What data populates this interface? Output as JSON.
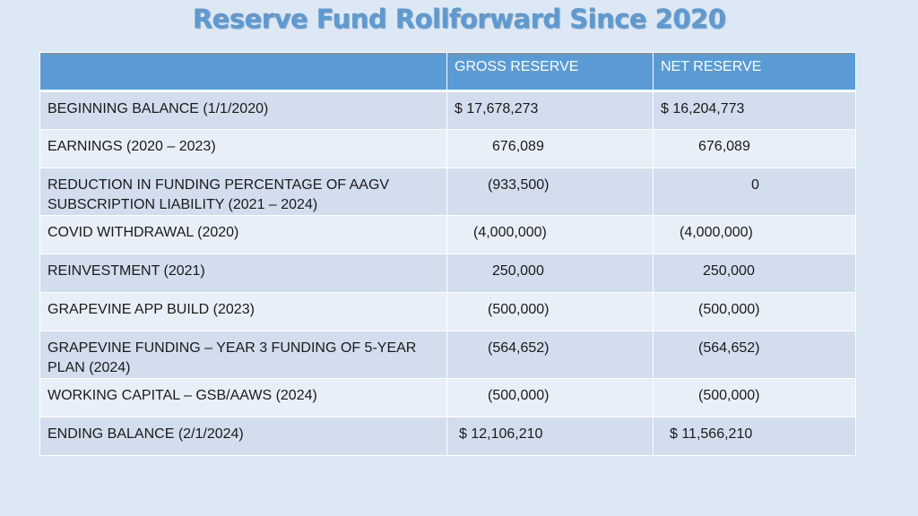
{
  "title": "Reserve Fund Rollforward Since 2020",
  "columns": [
    "",
    "GROSS RESERVE",
    "NET RESERVE"
  ],
  "rows": [
    {
      "label": "BEGINNING BALANCE (1/1/2020)",
      "gross": "$ 17,678,273",
      "net": "$ 16,204,773"
    },
    {
      "label": "EARNINGS (2020 – 2023)",
      "gross": "676,089",
      "net": "676,089"
    },
    {
      "label": "REDUCTION IN FUNDING PERCENTAGE OF AAGV SUBSCRIPTION LIABILITY (2021 – 2024)",
      "gross": "(933,500)",
      "net": "0"
    },
    {
      "label": "COVID WITHDRAWAL (2020)",
      "gross": "(4,000,000)",
      "net": "(4,000,000)"
    },
    {
      "label": "REINVESTMENT (2021)",
      "gross": "250,000",
      "net": "250,000"
    },
    {
      "label": "GRAPEVINE APP BUILD (2023)",
      "gross": "(500,000)",
      "net": "(500,000)"
    },
    {
      "label": "GRAPEVINE FUNDING – YEAR 3 FUNDING OF 5-YEAR PLAN (2024)",
      "gross": "(564,652)",
      "net": "(564,652)"
    },
    {
      "label": "WORKING CAPITAL – GSB/AAWS (2024)",
      "gross": "(500,000)",
      "net": "(500,000)"
    },
    {
      "label": "ENDING BALANCE (2/1/2024)",
      "gross": "$ 12,106,210",
      "net": "$ 11,566,210"
    }
  ]
}
